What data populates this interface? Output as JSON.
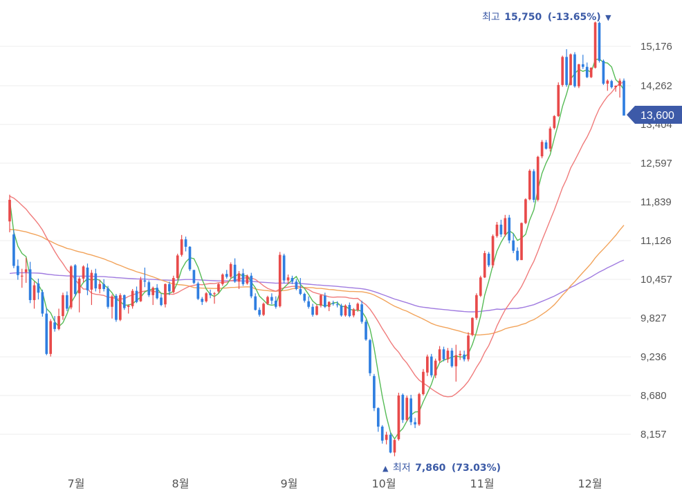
{
  "chart_data": {
    "type": "candlestick",
    "x_ticks": [
      "7월",
      "8월",
      "9월",
      "10월",
      "11월",
      "12월"
    ],
    "y_ticks": [
      15176,
      14262,
      13404,
      12597,
      11839,
      11126,
      10457,
      9827,
      9236,
      8680,
      8157
    ],
    "y_tick_labels": [
      "15,176",
      "14,262",
      "13,404",
      "12,597",
      "11,839",
      "11,126",
      "10,457",
      "9,827",
      "9,236",
      "8,680",
      "8,157"
    ],
    "current_price": "13,600",
    "high": {
      "label": "최고",
      "value": "15,750",
      "change": "(-13.65%)",
      "marker": "▼"
    },
    "low": {
      "label": "최저",
      "value": "7,860",
      "change": "(73.03%)",
      "marker": "▲"
    },
    "candles_note": "daily OHLC, approx. 150 sessions",
    "ohlc": [
      [
        11480,
        11980,
        11280,
        11880
      ],
      [
        11240,
        11320,
        10650,
        10690
      ],
      [
        10690,
        10800,
        10450,
        10530
      ],
      [
        10520,
        10640,
        10320,
        10520
      ],
      [
        10580,
        10830,
        10400,
        10630
      ],
      [
        10630,
        10760,
        10070,
        10120
      ],
      [
        10120,
        10420,
        9980,
        10360
      ],
      [
        10390,
        10470,
        10130,
        10240
      ],
      [
        10250,
        10290,
        9850,
        9900
      ],
      [
        9900,
        9990,
        9260,
        9280
      ],
      [
        9280,
        9810,
        9240,
        9780
      ],
      [
        9760,
        9860,
        9620,
        9660
      ],
      [
        9660,
        9980,
        9640,
        9860
      ],
      [
        9860,
        10240,
        9800,
        10200
      ],
      [
        10200,
        10260,
        9940,
        9980
      ],
      [
        10000,
        10700,
        9970,
        10680
      ],
      [
        10700,
        10720,
        10180,
        10220
      ],
      [
        10230,
        10500,
        9920,
        10470
      ],
      [
        10470,
        10700,
        10410,
        10680
      ],
      [
        10660,
        10730,
        10200,
        10280
      ],
      [
        10290,
        10620,
        10040,
        10570
      ],
      [
        10560,
        10640,
        10260,
        10310
      ],
      [
        10300,
        10450,
        10230,
        10380
      ],
      [
        10380,
        10460,
        10260,
        10300
      ],
      [
        10310,
        10350,
        9980,
        10010
      ],
      [
        10010,
        10210,
        9820,
        10180
      ],
      [
        10190,
        10220,
        9770,
        9800
      ],
      [
        9800,
        10230,
        9780,
        10200
      ],
      [
        10200,
        10210,
        9960,
        9990
      ],
      [
        10010,
        10050,
        9900,
        10030
      ],
      [
        10020,
        10300,
        9980,
        10270
      ],
      [
        10270,
        10340,
        10070,
        10090
      ],
      [
        10100,
        10500,
        10090,
        10450
      ],
      [
        10440,
        10660,
        10330,
        10420
      ],
      [
        10410,
        10440,
        10170,
        10200
      ],
      [
        10200,
        10340,
        10040,
        10320
      ],
      [
        10320,
        10380,
        10130,
        10150
      ],
      [
        10160,
        10220,
        10020,
        10040
      ],
      [
        10050,
        10390,
        10000,
        10380
      ],
      [
        10380,
        10420,
        10200,
        10260
      ],
      [
        10250,
        10520,
        10230,
        10480
      ],
      [
        10480,
        10900,
        10450,
        10870
      ],
      [
        10880,
        11230,
        10850,
        11150
      ],
      [
        11150,
        11200,
        10940,
        11020
      ],
      [
        11020,
        11030,
        10600,
        10630
      ],
      [
        10620,
        10620,
        10380,
        10400
      ],
      [
        10390,
        10420,
        10120,
        10140
      ],
      [
        10140,
        10170,
        10040,
        10090
      ],
      [
        10100,
        10250,
        10080,
        10230
      ],
      [
        10230,
        10290,
        10150,
        10200
      ],
      [
        10220,
        10250,
        10060,
        10230
      ],
      [
        10260,
        10400,
        10230,
        10380
      ],
      [
        10380,
        10560,
        10350,
        10540
      ],
      [
        10550,
        10620,
        10470,
        10500
      ],
      [
        10500,
        10750,
        10470,
        10720
      ],
      [
        10710,
        10820,
        10400,
        10420
      ],
      [
        10420,
        10600,
        10300,
        10560
      ],
      [
        10560,
        10640,
        10350,
        10380
      ],
      [
        10390,
        10540,
        10370,
        10520
      ],
      [
        10520,
        10570,
        10150,
        10180
      ],
      [
        10180,
        10230,
        9950,
        9960
      ],
      [
        9960,
        10000,
        9850,
        9880
      ],
      [
        9880,
        10080,
        9860,
        10060
      ],
      [
        10060,
        10190,
        10040,
        10170
      ],
      [
        10170,
        10230,
        10050,
        10110
      ],
      [
        10110,
        10180,
        9980,
        10010
      ],
      [
        10020,
        10930,
        10000,
        10880
      ],
      [
        10870,
        10900,
        10390,
        10440
      ],
      [
        10440,
        10540,
        10380,
        10490
      ],
      [
        10480,
        10520,
        10380,
        10420
      ],
      [
        10420,
        10460,
        10280,
        10300
      ],
      [
        10300,
        10480,
        10200,
        10220
      ],
      [
        10220,
        10240,
        10080,
        10110
      ],
      [
        10100,
        10180,
        9980,
        10010
      ],
      [
        10010,
        10060,
        9850,
        9880
      ],
      [
        9880,
        10050,
        9870,
        10020
      ],
      [
        10030,
        10210,
        10000,
        10200
      ],
      [
        10190,
        10240,
        9990,
        10010
      ],
      [
        10010,
        10100,
        9940,
        10090
      ],
      [
        10070,
        10110,
        10030,
        10060
      ],
      [
        10050,
        10100,
        10000,
        10040
      ],
      [
        10030,
        10060,
        9850,
        9870
      ],
      [
        9870,
        10050,
        9850,
        10030
      ],
      [
        10040,
        10080,
        9840,
        9860
      ],
      [
        9870,
        9990,
        9840,
        9970
      ],
      [
        9960,
        10080,
        9930,
        10060
      ],
      [
        10050,
        10110,
        9740,
        9770
      ],
      [
        9770,
        9800,
        9480,
        9500
      ],
      [
        9490,
        9510,
        8960,
        9000
      ],
      [
        8960,
        8990,
        8470,
        8510
      ],
      [
        8510,
        8520,
        8190,
        8260
      ],
      [
        8260,
        8280,
        8030,
        8070
      ],
      [
        8080,
        8190,
        8020,
        8150
      ],
      [
        8150,
        8180,
        7900,
        7910
      ],
      [
        7910,
        8090,
        7860,
        8080
      ],
      [
        8090,
        8720,
        8070,
        8680
      ],
      [
        8690,
        8710,
        8310,
        8350
      ],
      [
        8350,
        8680,
        8330,
        8650
      ],
      [
        8640,
        8690,
        8280,
        8320
      ],
      [
        8320,
        8380,
        8240,
        8290
      ],
      [
        8290,
        8720,
        8270,
        8700
      ],
      [
        8700,
        9060,
        8680,
        9020
      ],
      [
        9010,
        9270,
        8960,
        9240
      ],
      [
        9240,
        9280,
        8940,
        8970
      ],
      [
        8970,
        9210,
        8930,
        9180
      ],
      [
        9180,
        9400,
        9150,
        9350
      ],
      [
        9350,
        9390,
        9170,
        9200
      ],
      [
        9200,
        9370,
        9150,
        9330
      ],
      [
        9330,
        9370,
        9080,
        9100
      ],
      [
        9100,
        9420,
        8880,
        9260
      ],
      [
        9260,
        9330,
        9190,
        9280
      ],
      [
        9270,
        9330,
        9170,
        9200
      ],
      [
        9200,
        9610,
        9170,
        9560
      ],
      [
        9570,
        9840,
        9550,
        9830
      ],
      [
        9830,
        10230,
        9800,
        10200
      ],
      [
        10190,
        10520,
        10170,
        10490
      ],
      [
        10490,
        10950,
        10480,
        10910
      ],
      [
        10900,
        10930,
        10670,
        10700
      ],
      [
        10700,
        11240,
        10660,
        11210
      ],
      [
        11210,
        11470,
        11180,
        11420
      ],
      [
        11420,
        11510,
        11190,
        11240
      ],
      [
        11240,
        11600,
        11200,
        11540
      ],
      [
        11550,
        11600,
        11080,
        11130
      ],
      [
        11130,
        11260,
        10910,
        10950
      ],
      [
        10950,
        11010,
        10770,
        10790
      ],
      [
        10790,
        11460,
        10790,
        11450
      ],
      [
        11450,
        11910,
        11430,
        11890
      ],
      [
        11890,
        12480,
        11870,
        12450
      ],
      [
        12440,
        12480,
        11830,
        11880
      ],
      [
        11880,
        12750,
        11850,
        12730
      ],
      [
        12740,
        13080,
        12700,
        13040
      ],
      [
        13030,
        13080,
        12880,
        12900
      ],
      [
        12900,
        13360,
        12840,
        13320
      ],
      [
        13330,
        13610,
        13300,
        13590
      ],
      [
        13590,
        14340,
        13570,
        14280
      ],
      [
        14280,
        14960,
        14240,
        14930
      ],
      [
        14930,
        15110,
        14240,
        14280
      ],
      [
        14280,
        15010,
        14270,
        14990
      ],
      [
        14990,
        15040,
        14220,
        14250
      ],
      [
        14250,
        14770,
        14210,
        14760
      ],
      [
        14760,
        14980,
        14650,
        14700
      ],
      [
        14700,
        14800,
        14440,
        14460
      ],
      [
        14460,
        14690,
        14440,
        14680
      ],
      [
        14680,
        15750,
        14660,
        15730
      ],
      [
        15720,
        15750,
        14800,
        14840
      ],
      [
        14840,
        14870,
        14280,
        14310
      ],
      [
        14310,
        14410,
        14150,
        14380
      ],
      [
        14370,
        14400,
        14200,
        14230
      ],
      [
        14230,
        14270,
        14130,
        14260
      ],
      [
        14260,
        14430,
        14000,
        14380
      ],
      [
        14380,
        14430,
        13620,
        13600
      ]
    ]
  },
  "colors": {
    "up": "#e84a4a",
    "down": "#2f7ee0",
    "ma5": "#55bb55",
    "ma20": "#f07b7b",
    "ma60": "#f2a35a",
    "ma120": "#a07be0",
    "grid": "#ececec",
    "badge": "#3d5aa8"
  }
}
